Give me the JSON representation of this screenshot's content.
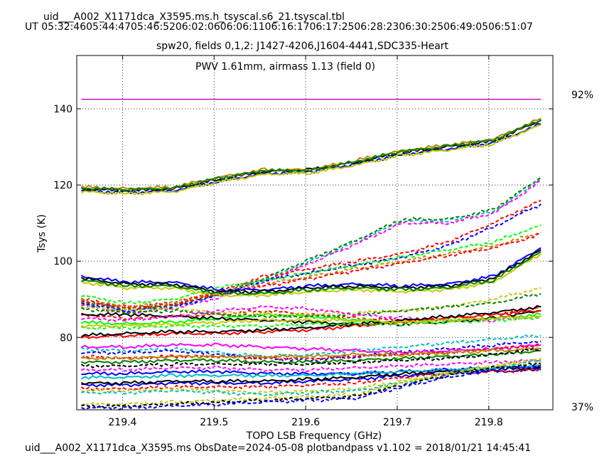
{
  "header": {
    "table_name": "uid___A002_X1171dca_X3595.ms.h_tsyscal.s6_21.tsyscal.tbl",
    "ut_times": "UT 05:32:4605:44:4705:46:5206:02:0606:06:1106:16:1706:17:2506:28:2306:30:2506:49:0506:51:07"
  },
  "footer": {
    "caption": "uid___A002_X1171dca_X3595.ms  ObsDate=2024-05-08   plotbandpass v1.102 = 2018/01/21 14:45:41"
  },
  "chart_data": {
    "type": "line",
    "title": "spw20,  fields 0,1,2: J1427-4206,J1604-4441,SDC335-Heart",
    "annotation": "PWV 1.61mm, airmass 1.13 (field 0)",
    "annotation_color": "#c000c0",
    "xlabel": "TOPO LSB Frequency (GHz)",
    "ylabel": "Tsys (K)",
    "xlim": [
      219.35,
      219.87
    ],
    "ylim": [
      61,
      154
    ],
    "xticks": [
      219.4,
      219.5,
      219.6,
      219.7,
      219.8
    ],
    "xtick_labels": [
      "219.4",
      "219.5",
      "219.6",
      "219.7",
      "219.8"
    ],
    "yticks": [
      80,
      100,
      120,
      140
    ],
    "ytick_labels": [
      "80",
      "100",
      "120",
      "140"
    ],
    "grid": true,
    "transmission": {
      "color": "#c000c0",
      "level_value": 142.5,
      "x_range": [
        219.355,
        219.857
      ],
      "top_label": "92%",
      "bottom_label": "37%"
    },
    "x": [
      219.355,
      219.405,
      219.455,
      219.505,
      219.555,
      219.605,
      219.655,
      219.705,
      219.755,
      219.805,
      219.857
    ],
    "series": [
      {
        "color": "#0000ff",
        "style": "solid",
        "values": [
          118.5,
          118,
          118.5,
          121,
          123,
          123.5,
          125.5,
          128,
          129.5,
          131,
          136
        ]
      },
      {
        "color": "#000000",
        "style": "solid",
        "values": [
          119,
          118.5,
          119,
          121.5,
          123.5,
          124,
          126,
          128.5,
          130,
          131.5,
          137
        ]
      },
      {
        "color": "#b8860b",
        "style": "solid",
        "values": [
          119.5,
          119,
          119.5,
          122,
          124,
          124,
          126.5,
          129,
          130.5,
          132,
          137.5
        ]
      },
      {
        "color": "#008000",
        "style": "solid",
        "values": [
          119.2,
          118.8,
          119.2,
          121.8,
          123.8,
          123.8,
          126.2,
          128.8,
          130.2,
          131.8,
          137.2
        ]
      },
      {
        "color": "#c8c800",
        "style": "solid",
        "values": [
          118.2,
          117.8,
          118.2,
          120.8,
          122.8,
          123.2,
          125.2,
          127.8,
          129.2,
          130.8,
          135.8
        ]
      },
      {
        "color": "#00c0c0",
        "style": "dashed",
        "values": [
          89,
          87,
          88,
          91,
          95,
          100,
          105,
          110.5,
          110.5,
          113,
          121.5
        ]
      },
      {
        "color": "#ff00ff",
        "style": "dashed",
        "values": [
          88.5,
          86.5,
          87.5,
          90.5,
          94.5,
          99.5,
          104.5,
          110,
          110,
          112.5,
          121
        ]
      },
      {
        "color": "#008000",
        "style": "dashed",
        "values": [
          89.5,
          87.5,
          88.5,
          91.5,
          95.5,
          100.5,
          105.5,
          111,
          111,
          113.5,
          122
        ]
      },
      {
        "color": "#ff0000",
        "style": "dashed",
        "values": [
          90,
          88,
          89,
          92,
          96,
          98,
          100,
          102,
          105,
          110,
          116
        ]
      },
      {
        "color": "#0000ff",
        "style": "dashed",
        "values": [
          89,
          87,
          88,
          91,
          95,
          97,
          99,
          101,
          104,
          109,
          115
        ]
      },
      {
        "color": "#00ff00",
        "style": "dashed",
        "values": [
          91,
          89,
          90,
          93,
          95,
          97,
          99,
          101,
          103,
          105,
          109.5
        ]
      },
      {
        "color": "#b8860b",
        "style": "dashed",
        "values": [
          90,
          88,
          89,
          92,
          94,
          96,
          98,
          100,
          102,
          104,
          107.5
        ]
      },
      {
        "color": "#ff0000",
        "style": "dashed",
        "values": [
          89.5,
          87.5,
          88.5,
          91.5,
          93.5,
          95.5,
          97.5,
          99.5,
          101.5,
          103.5,
          107
        ]
      },
      {
        "color": "#0000ff",
        "style": "solid",
        "values": [
          96,
          94.5,
          94.5,
          92.5,
          92.5,
          93.5,
          94,
          93.5,
          94,
          96,
          103.5
        ]
      },
      {
        "color": "#000000",
        "style": "solid",
        "values": [
          95.5,
          94,
          94,
          92,
          92,
          93,
          93.5,
          93,
          93.5,
          95.5,
          103
        ]
      },
      {
        "color": "#c8c800",
        "style": "solid",
        "values": [
          94.5,
          93,
          93,
          91,
          91,
          92,
          92.5,
          92,
          92.5,
          94.5,
          102
        ]
      },
      {
        "color": "#008000",
        "style": "solid",
        "values": [
          95,
          93.5,
          93.5,
          91.5,
          91.5,
          92.5,
          93,
          92.5,
          93,
          95,
          102.5
        ]
      },
      {
        "color": "#ff0000",
        "style": "dashed",
        "values": [
          86,
          85,
          85.5,
          86,
          87,
          86,
          85,
          84.5,
          85,
          86,
          88
        ]
      },
      {
        "color": "#00ff00",
        "style": "solid",
        "values": [
          84,
          83.5,
          84,
          85,
          86,
          85.5,
          84.5,
          84,
          84.5,
          85,
          86
        ]
      },
      {
        "color": "#000000",
        "style": "solid",
        "values": [
          86,
          86,
          85.5,
          85,
          84.5,
          84,
          83.5,
          83.5,
          84,
          85,
          87
        ]
      },
      {
        "color": "#c8c800",
        "style": "dashed",
        "values": [
          88,
          87,
          87.5,
          86.5,
          86,
          86,
          86.5,
          87,
          88,
          90,
          93
        ]
      },
      {
        "color": "#008000",
        "style": "dashed",
        "values": [
          87.5,
          86.5,
          87,
          86,
          85.5,
          85.5,
          86,
          87,
          88,
          89,
          91.5
        ]
      },
      {
        "color": "#ff00ff",
        "style": "dashed",
        "values": [
          85,
          84.5,
          85.5,
          87,
          88,
          87.5,
          86,
          85,
          84.5,
          84.5,
          85.5
        ]
      },
      {
        "color": "#ff0000",
        "style": "solid",
        "values": [
          80,
          80.5,
          81,
          81,
          81.5,
          82,
          83,
          84,
          85,
          86,
          87
        ]
      },
      {
        "color": "#000000",
        "style": "solid",
        "values": [
          80.5,
          81,
          81.5,
          81.5,
          82,
          82.5,
          83.5,
          84.5,
          85.5,
          86.5,
          88
        ]
      },
      {
        "color": "#00ff00",
        "style": "dashed",
        "values": [
          82.5,
          82.5,
          83,
          83,
          83,
          83.5,
          83.5,
          83.5,
          84,
          84.5,
          85
        ]
      },
      {
        "color": "#c8c800",
        "style": "solid",
        "values": [
          83,
          83,
          83.5,
          84,
          84.5,
          84.5,
          84.5,
          84,
          84.5,
          85,
          85.5
        ]
      },
      {
        "color": "#00c0c0",
        "style": "dashed",
        "values": [
          77,
          76.5,
          77,
          76,
          75,
          75.5,
          76.5,
          77.5,
          78.5,
          79.5,
          80.5
        ]
      },
      {
        "color": "#0000ff",
        "style": "dashed",
        "values": [
          76,
          76,
          76.5,
          75.5,
          74.5,
          74,
          75,
          76,
          77,
          78,
          79
        ]
      },
      {
        "color": "#ff00ff",
        "style": "solid",
        "values": [
          77.5,
          77.5,
          78,
          78,
          77.5,
          77,
          76.5,
          76,
          76.5,
          77,
          78
        ]
      },
      {
        "color": "#ff0000",
        "style": "dashed",
        "values": [
          75,
          74.5,
          75,
          75,
          74.5,
          74.5,
          75,
          75.5,
          76,
          77,
          78
        ]
      },
      {
        "color": "#b8860b",
        "style": "solid",
        "values": [
          74.5,
          74.5,
          75,
          75,
          75,
          75,
          75.5,
          75.5,
          76,
          76.5,
          77
        ]
      },
      {
        "color": "#008000",
        "style": "solid",
        "values": [
          73.5,
          73.5,
          74,
          74,
          73.5,
          73.5,
          74,
          74.5,
          75,
          75.5,
          76.5
        ]
      },
      {
        "color": "#000000",
        "style": "dashed",
        "values": [
          72.5,
          72.5,
          73,
          73,
          73,
          73,
          73.5,
          74,
          74.5,
          75.5,
          77
        ]
      },
      {
        "color": "#0000ff",
        "style": "solid",
        "values": [
          70.5,
          70.5,
          71,
          71,
          70.5,
          70.5,
          70.5,
          71,
          71.5,
          72,
          72.5
        ]
      },
      {
        "color": "#ff00ff",
        "style": "dashed",
        "values": [
          71.5,
          71.5,
          72,
          72,
          71.5,
          71.5,
          72,
          72.5,
          73,
          73.5,
          74
        ]
      },
      {
        "color": "#00c0c0",
        "style": "solid",
        "values": [
          69.5,
          69.5,
          70,
          70,
          70,
          70,
          70.5,
          71,
          71.5,
          72,
          72.5
        ]
      },
      {
        "color": "#0000ff",
        "style": "solid",
        "values": [
          67.5,
          67.5,
          68,
          68,
          68,
          68.5,
          69,
          70,
          70.5,
          71,
          71.5
        ]
      },
      {
        "color": "#000000",
        "style": "solid",
        "values": [
          68,
          68,
          68.5,
          68.5,
          68.5,
          69,
          69.5,
          70.5,
          71,
          71.5,
          72
        ]
      },
      {
        "color": "#ff0000",
        "style": "dashed",
        "values": [
          66.5,
          66.5,
          67,
          67,
          67,
          67.5,
          68,
          69.5,
          70.5,
          71,
          71.5
        ]
      },
      {
        "color": "#c8c800",
        "style": "dashed",
        "values": [
          66,
          66,
          66.5,
          66,
          65.5,
          66,
          66.5,
          68.5,
          70.5,
          72.5,
          74.5
        ]
      },
      {
        "color": "#00c0c0",
        "style": "dashed",
        "values": [
          65.5,
          65.5,
          66,
          65.5,
          65,
          65.5,
          66,
          68,
          70,
          72,
          74
        ]
      },
      {
        "color": "#c8c800",
        "style": "dashed",
        "values": [
          62.5,
          62.5,
          63,
          63.5,
          64,
          64.5,
          65,
          68,
          70.5,
          72.5,
          73.5
        ]
      },
      {
        "color": "#000000",
        "style": "dashed",
        "values": [
          62,
          62,
          62.5,
          63,
          63.5,
          64,
          64.5,
          67.5,
          70,
          72,
          73
        ]
      },
      {
        "color": "#0000ff",
        "style": "dashed",
        "values": [
          61.5,
          61.5,
          62,
          62.5,
          63,
          63.5,
          64,
          67,
          69.5,
          71.5,
          72.5
        ]
      }
    ]
  }
}
